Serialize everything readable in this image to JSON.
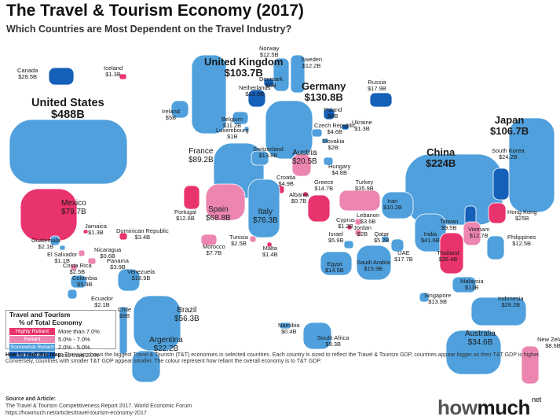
{
  "header": {
    "title": "The Travel & Tourism Economy (2017)",
    "subtitle": "Which Countries are Most Dependent on the Travel Industry?"
  },
  "colors": {
    "highly_reliant": "#e8336d",
    "reliant": "#ec86b1",
    "somewhat_reliant": "#4fa0dc",
    "least_reliant": "#1560b8"
  },
  "countries": [
    {
      "name": "Canada",
      "value": "$28.5B",
      "tier": "least_reliant"
    },
    {
      "name": "Iceland",
      "value": "$1.3B",
      "tier": "highly_reliant"
    },
    {
      "name": "United States",
      "value": "$488B",
      "tier": "somewhat_reliant"
    },
    {
      "name": "United Kingdom",
      "value": "$103.7B",
      "tier": "somewhat_reliant"
    },
    {
      "name": "Norway",
      "value": "$12.5B",
      "tier": "somewhat_reliant"
    },
    {
      "name": "Sweden",
      "value": "$12.2B",
      "tier": "somewhat_reliant"
    },
    {
      "name": "Denmark",
      "value": "$6B",
      "tier": "least_reliant"
    },
    {
      "name": "Netherlands",
      "value": "$13.9B",
      "tier": "least_reliant"
    },
    {
      "name": "Germany",
      "value": "$130.8B",
      "tier": "somewhat_reliant"
    },
    {
      "name": "Russia",
      "value": "$17.9B",
      "tier": "least_reliant"
    },
    {
      "name": "Ireland",
      "value": "$5B",
      "tier": "somewhat_reliant"
    },
    {
      "name": "Belgium",
      "value": "$11.2B",
      "tier": "somewhat_reliant"
    },
    {
      "name": "Luxembourg",
      "value": "$1B",
      "tier": "somewhat_reliant"
    },
    {
      "name": "Poland",
      "value": "$8B",
      "tier": "least_reliant"
    },
    {
      "name": "Czech Republic",
      "value": "$4.6B",
      "tier": "somewhat_reliant"
    },
    {
      "name": "Ukraine",
      "value": "$1.3B",
      "tier": "least_reliant"
    },
    {
      "name": "Slovakia",
      "value": "$2B",
      "tier": "somewhat_reliant"
    },
    {
      "name": "Japan",
      "value": "$106.7B",
      "tier": "somewhat_reliant"
    },
    {
      "name": "France",
      "value": "$89.2B",
      "tier": "somewhat_reliant"
    },
    {
      "name": "Switzerland",
      "value": "$13.8B",
      "tier": "somewhat_reliant"
    },
    {
      "name": "Austria",
      "value": "$20.5B",
      "tier": "reliant"
    },
    {
      "name": "Hungary",
      "value": "$4.8B",
      "tier": "somewhat_reliant"
    },
    {
      "name": "China",
      "value": "$224B",
      "tier": "somewhat_reliant"
    },
    {
      "name": "South Korea",
      "value": "$24.2B",
      "tier": "least_reliant"
    },
    {
      "name": "Croatia",
      "value": "$4.9B",
      "tier": "highly_reliant"
    },
    {
      "name": "Albania",
      "value": "$0.7B",
      "tier": "highly_reliant"
    },
    {
      "name": "Greece",
      "value": "$14.7B",
      "tier": "highly_reliant"
    },
    {
      "name": "Turkey",
      "value": "$35.9B",
      "tier": "reliant"
    },
    {
      "name": "Iran",
      "value": "$10.2B",
      "tier": "somewhat_reliant"
    },
    {
      "name": "Mexico",
      "value": "$79.7B",
      "tier": "highly_reliant"
    },
    {
      "name": "Portugal",
      "value": "$12.6B",
      "tier": "highly_reliant"
    },
    {
      "name": "Spain",
      "value": "$68.8B",
      "tier": "reliant"
    },
    {
      "name": "Italy",
      "value": "$76.3B",
      "tier": "somewhat_reliant"
    },
    {
      "name": "Hong Kong",
      "value": "$25B",
      "tier": "highly_reliant"
    },
    {
      "name": "Jamaica",
      "value": "$1.3B",
      "tier": "highly_reliant"
    },
    {
      "name": "Dominican Republic",
      "value": "$3.4B",
      "tier": "highly_reliant"
    },
    {
      "name": "Guatemala",
      "value": "$2.1B",
      "tier": "somewhat_reliant"
    },
    {
      "name": "El Salvador",
      "value": "$1.1B",
      "tier": "somewhat_reliant"
    },
    {
      "name": "Nicaragua",
      "value": "$0.6B",
      "tier": "reliant"
    },
    {
      "name": "Cyprus",
      "value": "$1.2B",
      "tier": "highly_reliant"
    },
    {
      "name": "Lebanon",
      "value": "$3.6B",
      "tier": "reliant"
    },
    {
      "name": "Jordan",
      "value": "$2B",
      "tier": "reliant"
    },
    {
      "name": "Qatar",
      "value": "$5.2B",
      "tier": "somewhat_reliant"
    },
    {
      "name": "Taiwan",
      "value": "$9.5B",
      "tier": "least_reliant"
    },
    {
      "name": "Vietnam",
      "value": "$12.7B",
      "tier": "reliant"
    },
    {
      "name": "India",
      "value": "$41.6B",
      "tier": "somewhat_reliant"
    },
    {
      "name": "Thailand",
      "value": "$36.4B",
      "tier": "highly_reliant"
    },
    {
      "name": "Morocco",
      "value": "$7.7B",
      "tier": "reliant"
    },
    {
      "name": "Tunisia",
      "value": "$2.5B",
      "tier": "reliant"
    },
    {
      "name": "Malta",
      "value": "$1.4B",
      "tier": "highly_reliant"
    },
    {
      "name": "Israel",
      "value": "$5.9B",
      "tier": "somewhat_reliant"
    },
    {
      "name": "UAE",
      "value": "$17.7B",
      "tier": "somewhat_reliant"
    },
    {
      "name": "Philippines",
      "value": "$12.5B",
      "tier": "somewhat_reliant"
    },
    {
      "name": "Panama",
      "value": "$3.9B",
      "tier": "reliant"
    },
    {
      "name": "Costa Rica",
      "value": "$2.5B",
      "tier": "reliant"
    },
    {
      "name": "Egypt",
      "value": "$14.5B",
      "tier": "somewhat_reliant"
    },
    {
      "name": "Saudi Arabia",
      "value": "$15.9B",
      "tier": "somewhat_reliant"
    },
    {
      "name": "Colombia",
      "value": "$5.9B",
      "tier": "somewhat_reliant"
    },
    {
      "name": "Venezuela",
      "value": "$18.9B",
      "tier": "somewhat_reliant"
    },
    {
      "name": "Malaysia",
      "value": "$13B",
      "tier": "somewhat_reliant"
    },
    {
      "name": "Ecuador",
      "value": "$2.1B",
      "tier": "somewhat_reliant"
    },
    {
      "name": "Singapore",
      "value": "$13.9B",
      "tier": "somewhat_reliant"
    },
    {
      "name": "Indonesia",
      "value": "$28.2B",
      "tier": "somewhat_reliant"
    },
    {
      "name": "Chile",
      "value": "$8B",
      "tier": "somewhat_reliant"
    },
    {
      "name": "Brazil",
      "value": "$56.3B",
      "tier": "somewhat_reliant"
    },
    {
      "name": "Namibia",
      "value": "$0.4B",
      "tier": "somewhat_reliant"
    },
    {
      "name": "South Africa",
      "value": "$9.3B",
      "tier": "somewhat_reliant"
    },
    {
      "name": "Argentina",
      "value": "$22.2B",
      "tier": "somewhat_reliant"
    },
    {
      "name": "Australia",
      "value": "$34.6B",
      "tier": "somewhat_reliant"
    },
    {
      "name": "New Zeland",
      "value": "$8.6B",
      "tier": "reliant"
    }
  ],
  "legend": {
    "title_line1": "Travel and Tourism",
    "title_line2": "% of Total Economy",
    "items": [
      {
        "label": "Highly Reliant",
        "range": "More than 7.0%"
      },
      {
        "label": "Reliant",
        "range": "5.0% - 7.0%"
      },
      {
        "label": "Somewhat Reliant",
        "range": "2.0% - 5.0%"
      },
      {
        "label": "Least Reliant",
        "range": "Less than 2.0%"
      }
    ]
  },
  "notes": {
    "howto_label": "How to read this map:",
    "howto_text": "The map shows the biggest Travel & Tourism (T&T) economies in selected countries. Each country is sized to reflect the Travel & Tourism GDP, countries appear bigger as their T&T GDP is higher.  Conversely, countries with smaller T&T GDP appear smaller. The colour represent how reliant the overall economy is to T&T GDP.",
    "source_label": "Source and Article:",
    "source_line1": "The Travel & Tourism Competitiveness Report 2017. World Economic Forum",
    "source_line2": "https://howmuch.net/articles/travel-tourism-economy-2017"
  },
  "brand": {
    "part1": "how",
    "part2": "much",
    "suffix": "net"
  }
}
